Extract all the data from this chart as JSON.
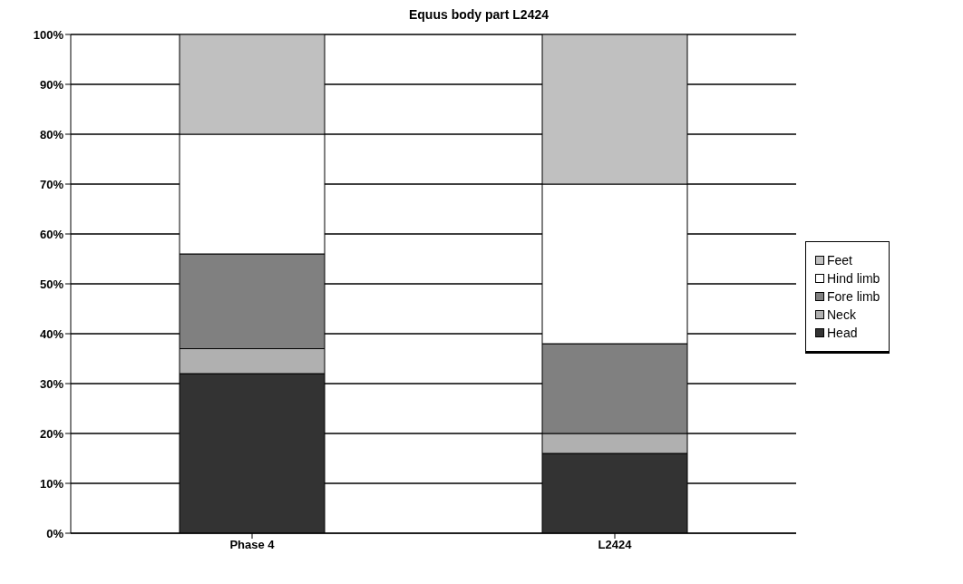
{
  "chart_data": {
    "type": "bar",
    "title": "Equus body part L2424",
    "stacked": true,
    "categories": [
      "Phase 4",
      "L2424"
    ],
    "series": [
      {
        "name": "Head",
        "color": "#333333",
        "values": [
          32,
          16
        ]
      },
      {
        "name": "Neck",
        "color": "#b0b0b0",
        "values": [
          5,
          4
        ]
      },
      {
        "name": "Fore limb",
        "color": "#808080",
        "values": [
          19,
          18
        ]
      },
      {
        "name": "Hind limb",
        "color": "#ffffff",
        "values": [
          24,
          32
        ]
      },
      {
        "name": "Feet",
        "color": "#c0c0c0",
        "values": [
          20,
          30
        ]
      }
    ],
    "ylim": [
      0,
      100
    ],
    "yticks": [
      {
        "value": 0,
        "label": "0%"
      },
      {
        "value": 10,
        "label": "10%"
      },
      {
        "value": 20,
        "label": "20%"
      },
      {
        "value": 30,
        "label": "30%"
      },
      {
        "value": 40,
        "label": "40%"
      },
      {
        "value": 50,
        "label": "50%"
      },
      {
        "value": 60,
        "label": "60%"
      },
      {
        "value": 70,
        "label": "70%"
      },
      {
        "value": 80,
        "label": "80%"
      },
      {
        "value": 90,
        "label": "90%"
      },
      {
        "value": 100,
        "label": "100%"
      }
    ],
    "grid": "y",
    "legend": "right"
  }
}
